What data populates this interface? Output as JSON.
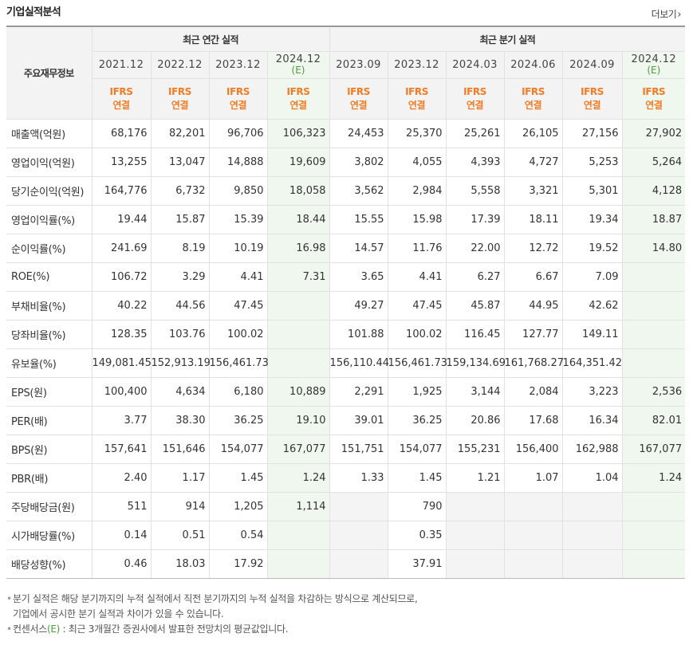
{
  "header": {
    "title": "기업실적분석",
    "more_label": "더보기"
  },
  "table": {
    "label_header": "주요재무정보",
    "groups": {
      "annual": "최근 연간 실적",
      "quarterly": "최근 분기 실적"
    },
    "periods": [
      {
        "period": "2021.12",
        "estimate": false,
        "basis1": "IFRS",
        "basis2": "연결"
      },
      {
        "period": "2022.12",
        "estimate": false,
        "basis1": "IFRS",
        "basis2": "연결"
      },
      {
        "period": "2023.12",
        "estimate": false,
        "basis1": "IFRS",
        "basis2": "연결"
      },
      {
        "period": "2024.12",
        "estimate": true,
        "estimate_mark": "(E)",
        "basis1": "IFRS",
        "basis2": "연결"
      },
      {
        "period": "2023.09",
        "estimate": false,
        "basis1": "IFRS",
        "basis2": "연결"
      },
      {
        "period": "2023.12",
        "estimate": false,
        "basis1": "IFRS",
        "basis2": "연결"
      },
      {
        "period": "2024.03",
        "estimate": false,
        "basis1": "IFRS",
        "basis2": "연결"
      },
      {
        "period": "2024.06",
        "estimate": false,
        "basis1": "IFRS",
        "basis2": "연결"
      },
      {
        "period": "2024.09",
        "estimate": false,
        "basis1": "IFRS",
        "basis2": "연결"
      },
      {
        "period": "2024.12",
        "estimate": true,
        "estimate_mark": "(E)",
        "basis1": "IFRS",
        "basis2": "연결"
      }
    ],
    "rows": [
      {
        "label": "매출액(억원)",
        "values": [
          "68,176",
          "82,201",
          "96,706",
          "106,323",
          "24,453",
          "25,370",
          "25,261",
          "26,105",
          "27,156",
          "27,902"
        ]
      },
      {
        "label": "영업이익(억원)",
        "values": [
          "13,255",
          "13,047",
          "14,888",
          "19,609",
          "3,802",
          "4,055",
          "4,393",
          "4,727",
          "5,253",
          "5,264"
        ]
      },
      {
        "label": "당기순이익(억원)",
        "values": [
          "164,776",
          "6,732",
          "9,850",
          "18,058",
          "3,562",
          "2,984",
          "5,558",
          "3,321",
          "5,301",
          "4,128"
        ]
      },
      {
        "label": "영업이익률(%)",
        "group_start": true,
        "values": [
          "19.44",
          "15.87",
          "15.39",
          "18.44",
          "15.55",
          "15.98",
          "17.39",
          "18.11",
          "19.34",
          "18.87"
        ]
      },
      {
        "label": "순이익률(%)",
        "values": [
          "241.69",
          "8.19",
          "10.19",
          "16.98",
          "14.57",
          "11.76",
          "22.00",
          "12.72",
          "19.52",
          "14.80"
        ]
      },
      {
        "label": "ROE(%)",
        "values": [
          "106.72",
          "3.29",
          "4.41",
          "7.31",
          "3.65",
          "4.41",
          "6.27",
          "6.67",
          "7.09",
          ""
        ]
      },
      {
        "label": "부채비율(%)",
        "group_start": true,
        "values": [
          "40.22",
          "44.56",
          "47.45",
          "",
          "49.27",
          "47.45",
          "45.87",
          "44.95",
          "42.62",
          ""
        ]
      },
      {
        "label": "당좌비율(%)",
        "values": [
          "128.35",
          "103.76",
          "100.02",
          "",
          "101.88",
          "100.02",
          "116.45",
          "127.77",
          "149.11",
          ""
        ]
      },
      {
        "label": "유보율(%)",
        "values": [
          "149,081.45",
          "152,913.19",
          "156,461.73",
          "",
          "156,110.44",
          "156,461.73",
          "159,134.69",
          "161,768.27",
          "164,351.42",
          ""
        ]
      },
      {
        "label": "EPS(원)",
        "group_start": true,
        "values": [
          "100,400",
          "4,634",
          "6,180",
          "10,889",
          "2,291",
          "1,925",
          "3,144",
          "2,084",
          "3,223",
          "2,536"
        ]
      },
      {
        "label": "PER(배)",
        "values": [
          "3.77",
          "38.30",
          "36.25",
          "19.10",
          "39.01",
          "36.25",
          "20.86",
          "17.68",
          "16.34",
          "82.01"
        ]
      },
      {
        "label": "BPS(원)",
        "values": [
          "157,641",
          "151,646",
          "154,077",
          "167,077",
          "151,751",
          "154,077",
          "155,231",
          "156,400",
          "162,988",
          "167,077"
        ]
      },
      {
        "label": "PBR(배)",
        "values": [
          "2.40",
          "1.17",
          "1.45",
          "1.24",
          "1.33",
          "1.45",
          "1.21",
          "1.07",
          "1.04",
          "1.24"
        ]
      },
      {
        "label": "주당배당금(원)",
        "group_start": true,
        "dividend": true,
        "values": [
          "511",
          "914",
          "1,205",
          "1,114",
          "",
          "790",
          "",
          "",
          "",
          ""
        ]
      },
      {
        "label": "시가배당률(%)",
        "dividend": true,
        "values": [
          "0.14",
          "0.51",
          "0.54",
          "",
          "",
          "0.35",
          "",
          "",
          "",
          ""
        ]
      },
      {
        "label": "배당성향(%)",
        "dividend": true,
        "values": [
          "0.46",
          "18.03",
          "17.92",
          "",
          "",
          "37.91",
          "",
          "",
          "",
          ""
        ]
      }
    ]
  },
  "notes": {
    "line1": "분기 실적은 해당 분기까지의 누적 실적에서 직전 분기까지의 누적 실적을 차감하는 방식으로 계산되므로,",
    "line2": "기업에서 공시한 분기 실적과 차이가 있을 수 있습니다.",
    "line3_prefix": "컨센서스",
    "line3_mark": "(E)",
    "line3_rest": " : 최근 3개월간 증권사에서 발표한 전망치의 평균값입니다."
  },
  "colors": {
    "basis": "#f27b23",
    "estimate_bg": "#eff7ee",
    "estimate_mark": "#4d9d3c",
    "header_bg": "#f3f3f3"
  }
}
